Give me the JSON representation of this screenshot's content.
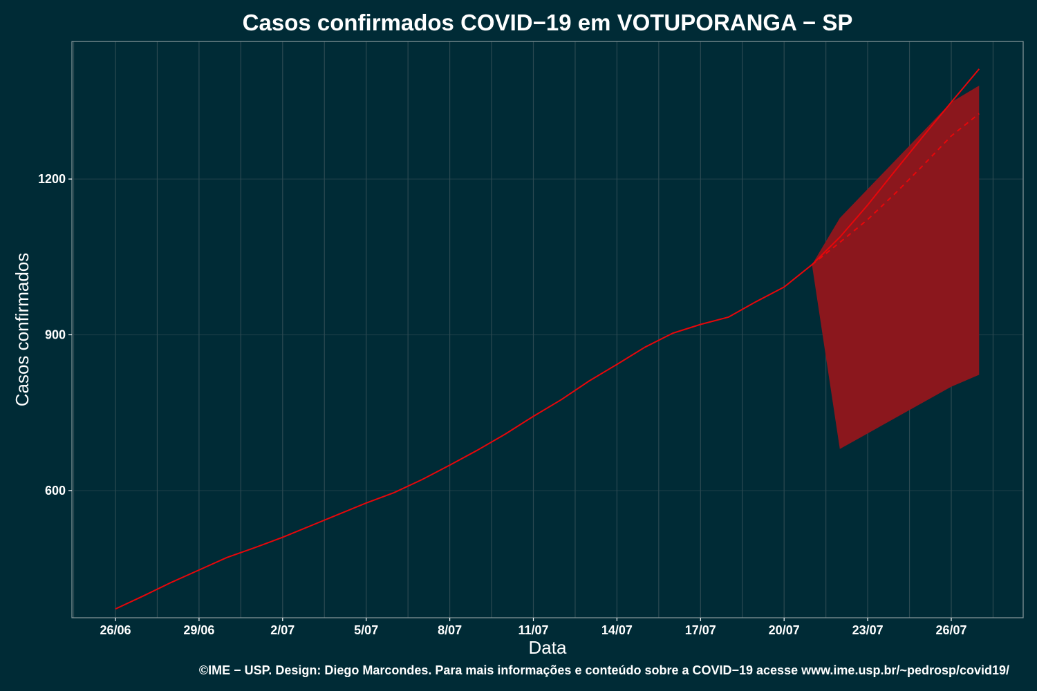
{
  "chart_data": {
    "type": "line",
    "title": "Casos confirmados COVID−19 em VOTUPORANGA − SP",
    "xlabel": "Data",
    "ylabel": "Casos confirmados",
    "caption": "©IME − USP. Design: Diego Marcondes. Para mais informações e conteúdo sobre a COVID−19 acesse www.ime.usp.br/~pedrosp/covid19/",
    "x_ticks": [
      "26/06",
      "29/06",
      "2/07",
      "5/07",
      "8/07",
      "11/07",
      "14/07",
      "17/07",
      "20/07",
      "23/07",
      "26/07"
    ],
    "x_dates": [
      "26/06",
      "27/06",
      "28/06",
      "29/06",
      "30/06",
      "1/07",
      "2/07",
      "3/07",
      "4/07",
      "5/07",
      "6/07",
      "7/07",
      "8/07",
      "9/07",
      "10/07",
      "11/07",
      "12/07",
      "13/07",
      "14/07",
      "15/07",
      "16/07",
      "17/07",
      "18/07",
      "19/07",
      "20/07",
      "21/07",
      "22/07",
      "23/07",
      "24/07",
      "25/07",
      "26/07",
      "27/07"
    ],
    "y_ticks": [
      600,
      900,
      1200
    ],
    "ylim": [
      355,
      1465
    ],
    "grid": true,
    "colors": {
      "background": "#002b36",
      "line": "#e8060a",
      "ribbon": "#8b171d",
      "grid": "#2c4a52"
    },
    "series": [
      {
        "style": "solid",
        "x": [
          "26/06",
          "27/06",
          "28/06",
          "29/06",
          "30/06",
          "1/07",
          "2/07",
          "3/07",
          "4/07",
          "5/07",
          "6/07",
          "7/07",
          "8/07",
          "9/07",
          "10/07",
          "11/07",
          "12/07",
          "13/07",
          "14/07",
          "15/07",
          "16/07",
          "17/07",
          "18/07",
          "19/07",
          "20/07",
          "21/07",
          "22/07",
          "23/07",
          "24/07",
          "25/07",
          "26/07",
          "27/07"
        ],
        "values": [
          372,
          397,
          423,
          447,
          471,
          490,
          510,
          532,
          554,
          576,
          596,
          621,
          649,
          678,
          709,
          743,
          775,
          811,
          843,
          876,
          903,
          920,
          934,
          964,
          992,
          1035,
          1088,
          1150,
          1217,
          1283,
          1348,
          1412
        ]
      },
      {
        "style": "dashed",
        "x": [
          "21/07",
          "22/07",
          "23/07",
          "24/07",
          "25/07",
          "26/07",
          "27/07"
        ],
        "values": [
          1035,
          1078,
          1122,
          1173,
          1227,
          1283,
          1326
        ]
      }
    ],
    "ribbon": {
      "x": [
        "21/07",
        "22/07",
        "26/07",
        "27/07"
      ],
      "lower": [
        1035,
        680,
        800,
        823
      ],
      "upper": [
        1035,
        1125,
        1348,
        1380
      ]
    }
  }
}
